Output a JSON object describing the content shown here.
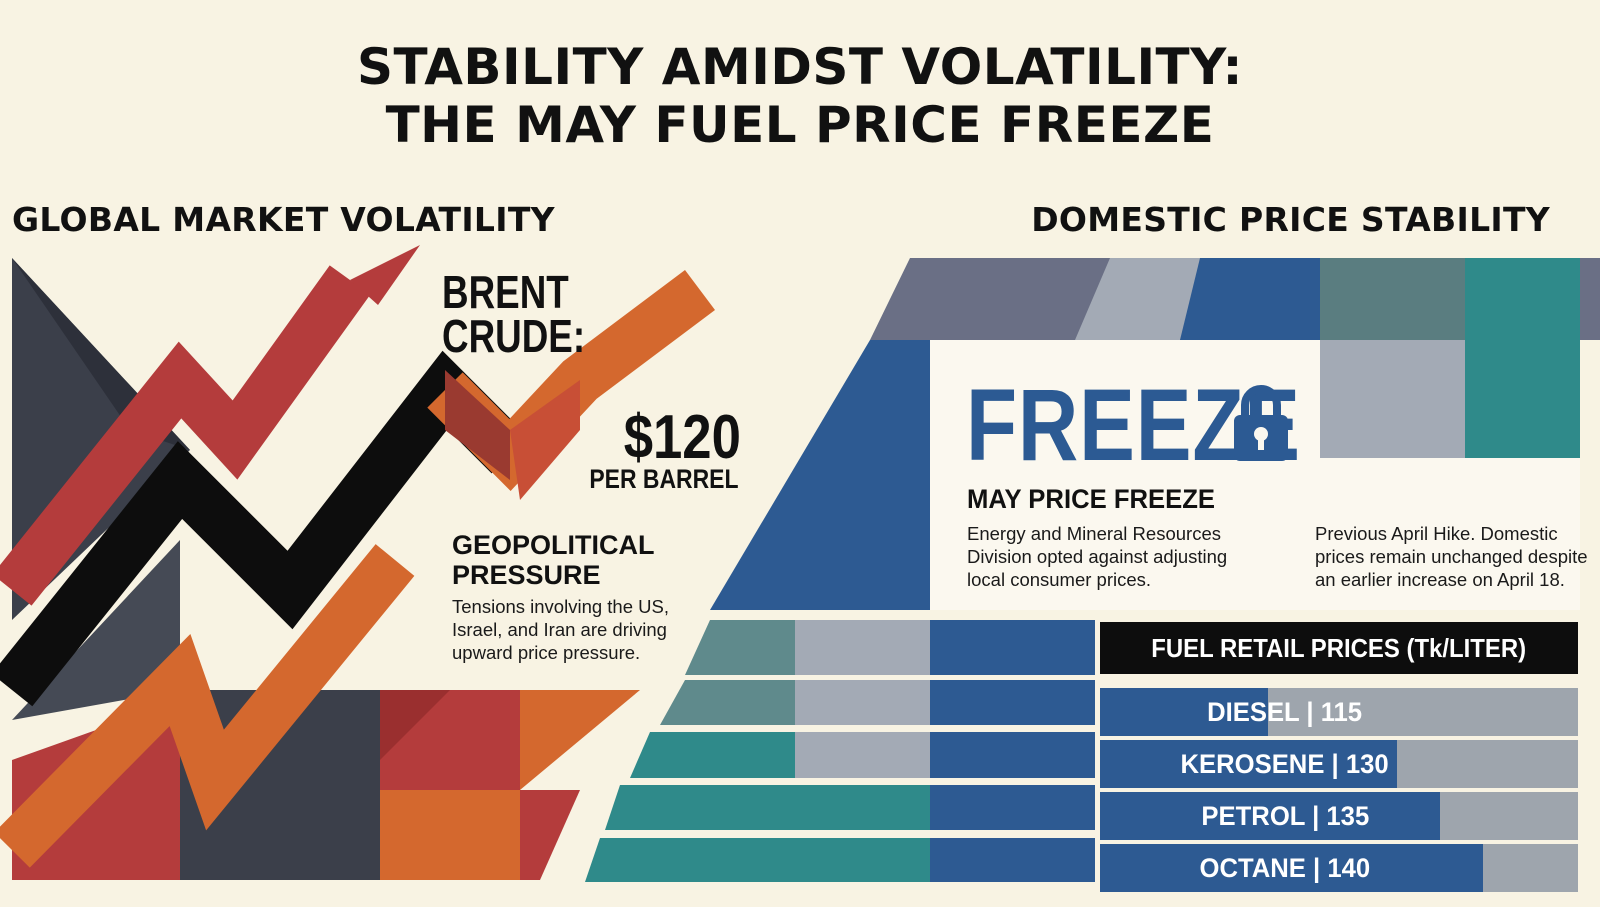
{
  "title": {
    "line1": "STABILITY AMIDST VOLATILITY:",
    "line2": "THE MAY FUEL PRICE FREEZE"
  },
  "left": {
    "heading": "GLOBAL MARKET VOLATILITY",
    "brent": {
      "line1": "BRENT",
      "line2": "CRUDE:",
      "price": "$120",
      "unit": "PER BARREL"
    },
    "geo": {
      "title_line1": "GEOPOLITICAL",
      "title_line2": "PRESSURE",
      "body_line1": "Tensions involving the US,",
      "body_line2": "Israel, and Iran are driving",
      "body_line3": "upward price pressure."
    }
  },
  "right": {
    "heading": "DOMESTIC PRICE STABILITY",
    "freeze_word": "FREEZE",
    "freeze_icon": "lock-icon",
    "may": {
      "title": "MAY PRICE FREEZE",
      "body_line1": "Energy and Mineral Resources",
      "body_line2": "Division opted against adjusting",
      "body_line3": "local consumer prices."
    },
    "previous": {
      "body_line1": "Previous April Hike. Domestic",
      "body_line2": "prices remain unchanged despite",
      "body_line3": "an earlier increase on April 18."
    },
    "table": {
      "header": "FUEL RETAIL PRICES (Tk/LITER)",
      "rows": [
        {
          "label": "DIESEL | 115",
          "value": 115
        },
        {
          "label": "KEROSENE | 130",
          "value": 130
        },
        {
          "label": "PETROL | 135",
          "value": 135
        },
        {
          "label": "OCTANE | 140",
          "value": 140
        }
      ]
    }
  },
  "colors": {
    "background": "#f8f3e3",
    "blue": "#2d5a92",
    "teal": "#2f8a8a",
    "grey": "#9ea5ad",
    "red": "#b43c3c",
    "orange": "#d4682e",
    "slate": "#3b3f4a"
  }
}
